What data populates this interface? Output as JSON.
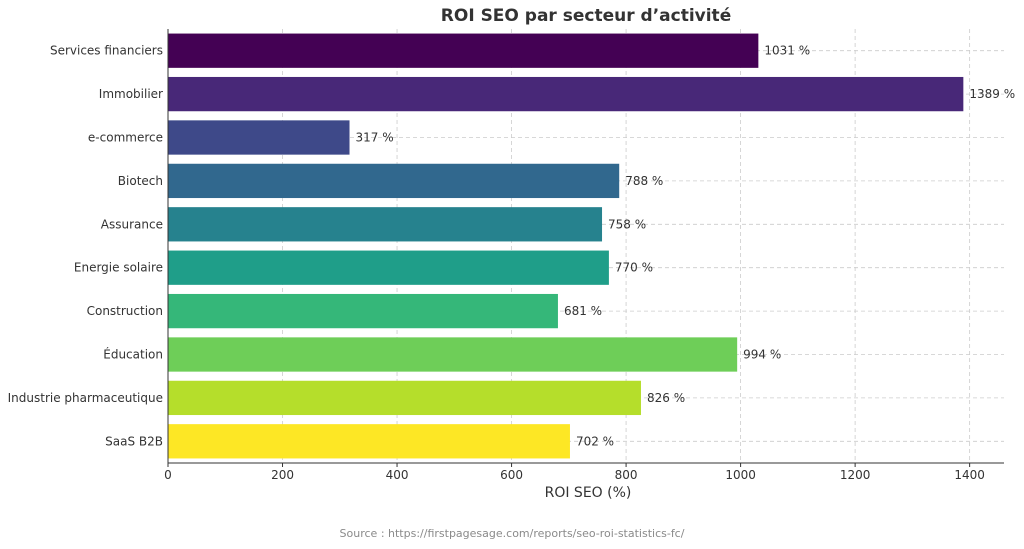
{
  "chart_data": {
    "type": "bar",
    "orientation": "horizontal",
    "title": "ROI SEO par secteur d’activité",
    "xlabel": "ROI SEO (%)",
    "ylabel": "",
    "xlim": [
      0,
      1460
    ],
    "xticks": [
      0,
      200,
      400,
      600,
      800,
      1000,
      1200,
      1400
    ],
    "grid": true,
    "value_suffix": " %",
    "categories": [
      "Services financiers",
      "Immobilier",
      "e-commerce",
      "Biotech",
      "Assurance",
      "Energie solaire",
      "Construction",
      "Éducation",
      "Industrie pharmaceutique",
      "SaaS B2B"
    ],
    "values": [
      1031,
      1389,
      317,
      788,
      758,
      770,
      681,
      994,
      826,
      702
    ],
    "colors": [
      "#440154",
      "#482878",
      "#3e4989",
      "#31688e",
      "#26828e",
      "#1f9e89",
      "#35b779",
      "#6ece58",
      "#b5de2b",
      "#fde725"
    ]
  },
  "source_text": "Source : https://firstpagesage.com/reports/seo-roi-statistics-fc/"
}
